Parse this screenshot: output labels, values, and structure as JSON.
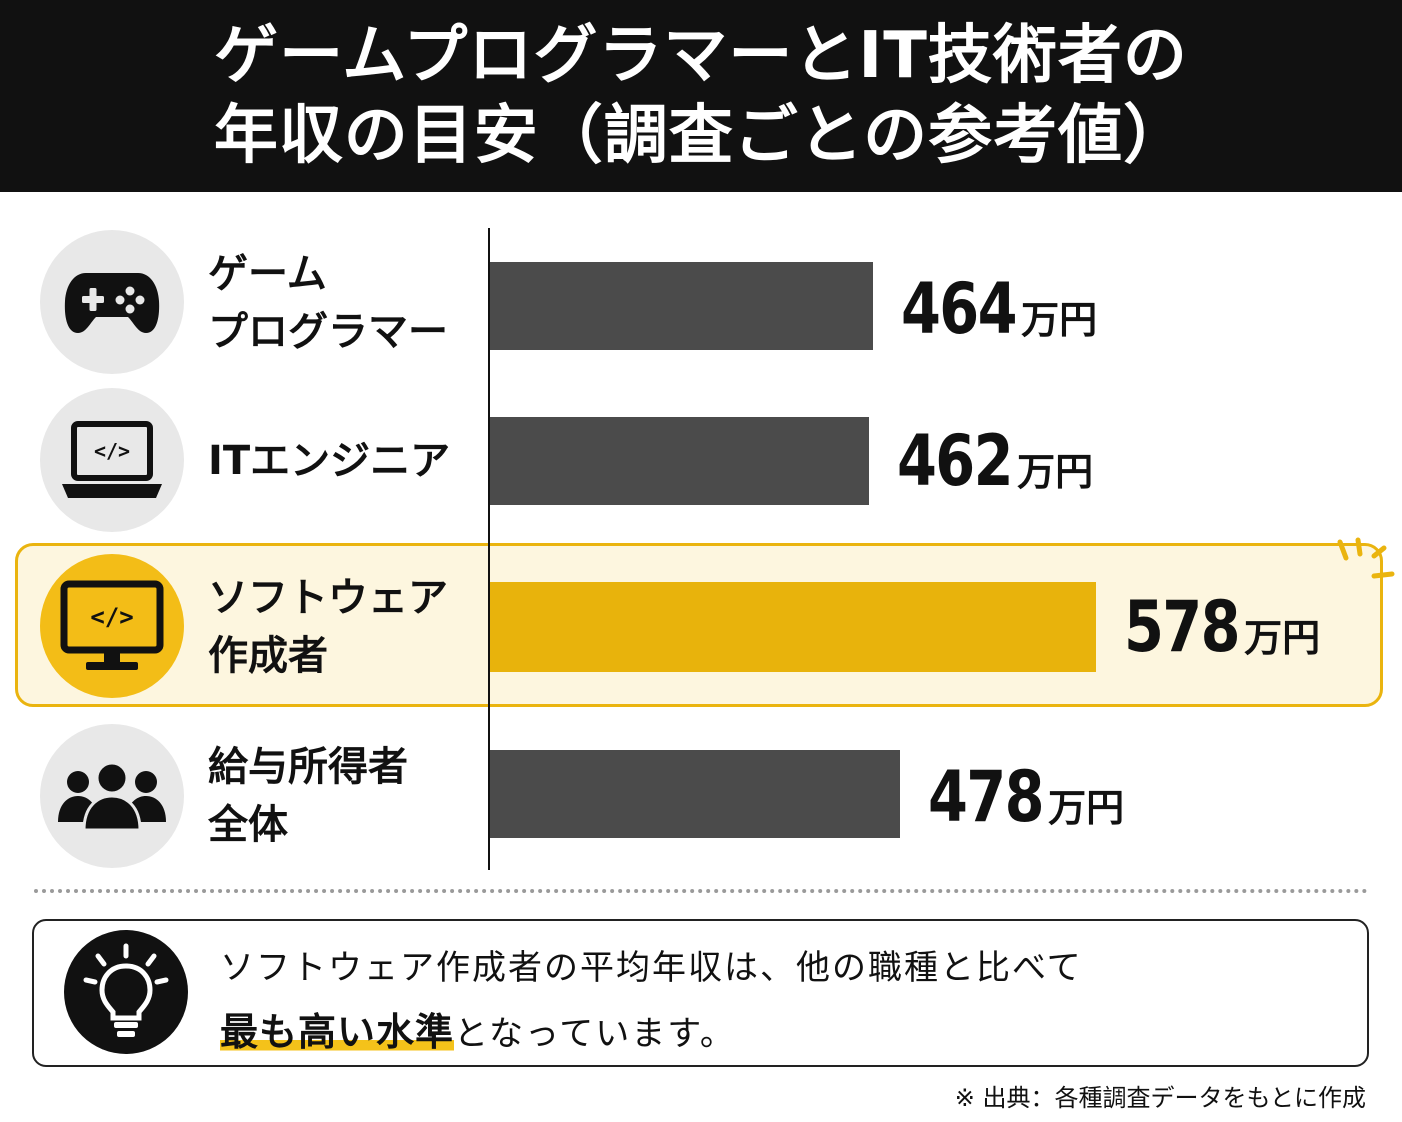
{
  "header": {
    "title_line1": "ゲームプログラマーとIT技術者の",
    "title_line2": "年収の目安（調査ごとの参考値）"
  },
  "chart_data": {
    "type": "bar",
    "orientation": "horizontal",
    "categories": [
      "ゲームプログラマー",
      "ITエンジニア",
      "ソフトウェア作成者",
      "給与所得者全体"
    ],
    "category_lines": [
      [
        "ゲーム",
        "プログラマー"
      ],
      [
        "ITエンジニア"
      ],
      [
        "ソフトウェア",
        "作成者"
      ],
      [
        "給与所得者",
        "全体"
      ]
    ],
    "values": [
      464,
      462,
      578,
      478
    ],
    "value_labels": [
      "464",
      "462",
      "578",
      "478"
    ],
    "unit": "万円",
    "highlight_index": 2,
    "icons": [
      "gamepad-icon",
      "laptop-code-icon",
      "monitor-code-icon",
      "people-icon"
    ],
    "colors": {
      "bar": "#4b4b4b",
      "highlight_bar": "#e8b30c",
      "highlight_bg": "#fdf6df",
      "header_bg": "#111111"
    }
  },
  "note": {
    "line1": "ソフトウェア作成者の平均年収は、他の職種と比べて",
    "emphasis": "最も高い水準",
    "line2_rest": "となっています。"
  },
  "source": "※ 出典：各種調査データをもとに作成"
}
